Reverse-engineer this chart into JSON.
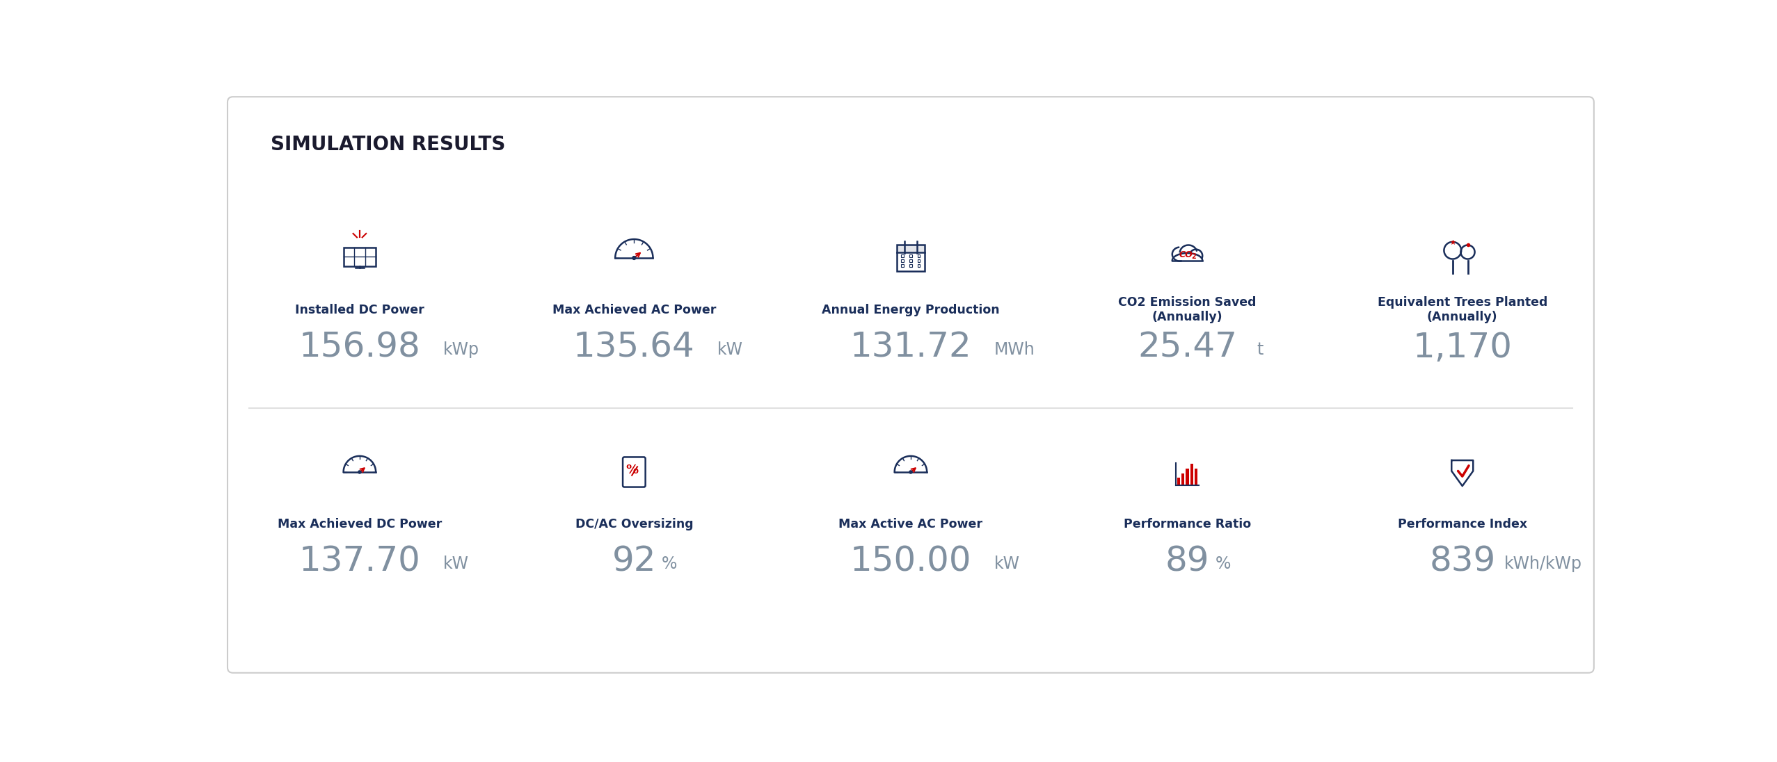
{
  "title": "SIMULATION RESULTS",
  "background_color": "#ffffff",
  "border_color": "#cccccc",
  "title_color": "#1a1a2e",
  "label_color": "#1a2e5a",
  "value_color": "#8090a0",
  "unit_color": "#8090a0",
  "divider_color": "#e0e0e0",
  "icon_dark_color": "#1a2e5a",
  "icon_red_color": "#cc0000",
  "top_row": [
    {
      "label": "Installed DC Power",
      "value": "156.98",
      "unit": "kWp"
    },
    {
      "label": "Max Achieved AC Power",
      "value": "135.64",
      "unit": "kW"
    },
    {
      "label": "Annual Energy Production",
      "value": "131.72",
      "unit": "MWh"
    },
    {
      "label": "CO2 Emission Saved\n(Annually)",
      "value": "25.47",
      "unit": "t"
    },
    {
      "label": "Equivalent Trees Planted\n(Annually)",
      "value": "1,170",
      "unit": ""
    }
  ],
  "bottom_row": [
    {
      "label": "Max Achieved DC Power",
      "value": "137.70",
      "unit": "kW"
    },
    {
      "label": "DC/AC Oversizing",
      "value": "92",
      "unit": "%"
    },
    {
      "label": "Max Active AC Power",
      "value": "150.00",
      "unit": "kW"
    },
    {
      "label": "Performance Ratio",
      "value": "89",
      "unit": "%"
    },
    {
      "label": "Performance Index",
      "value": "839",
      "unit": "kWh/kWp"
    }
  ]
}
